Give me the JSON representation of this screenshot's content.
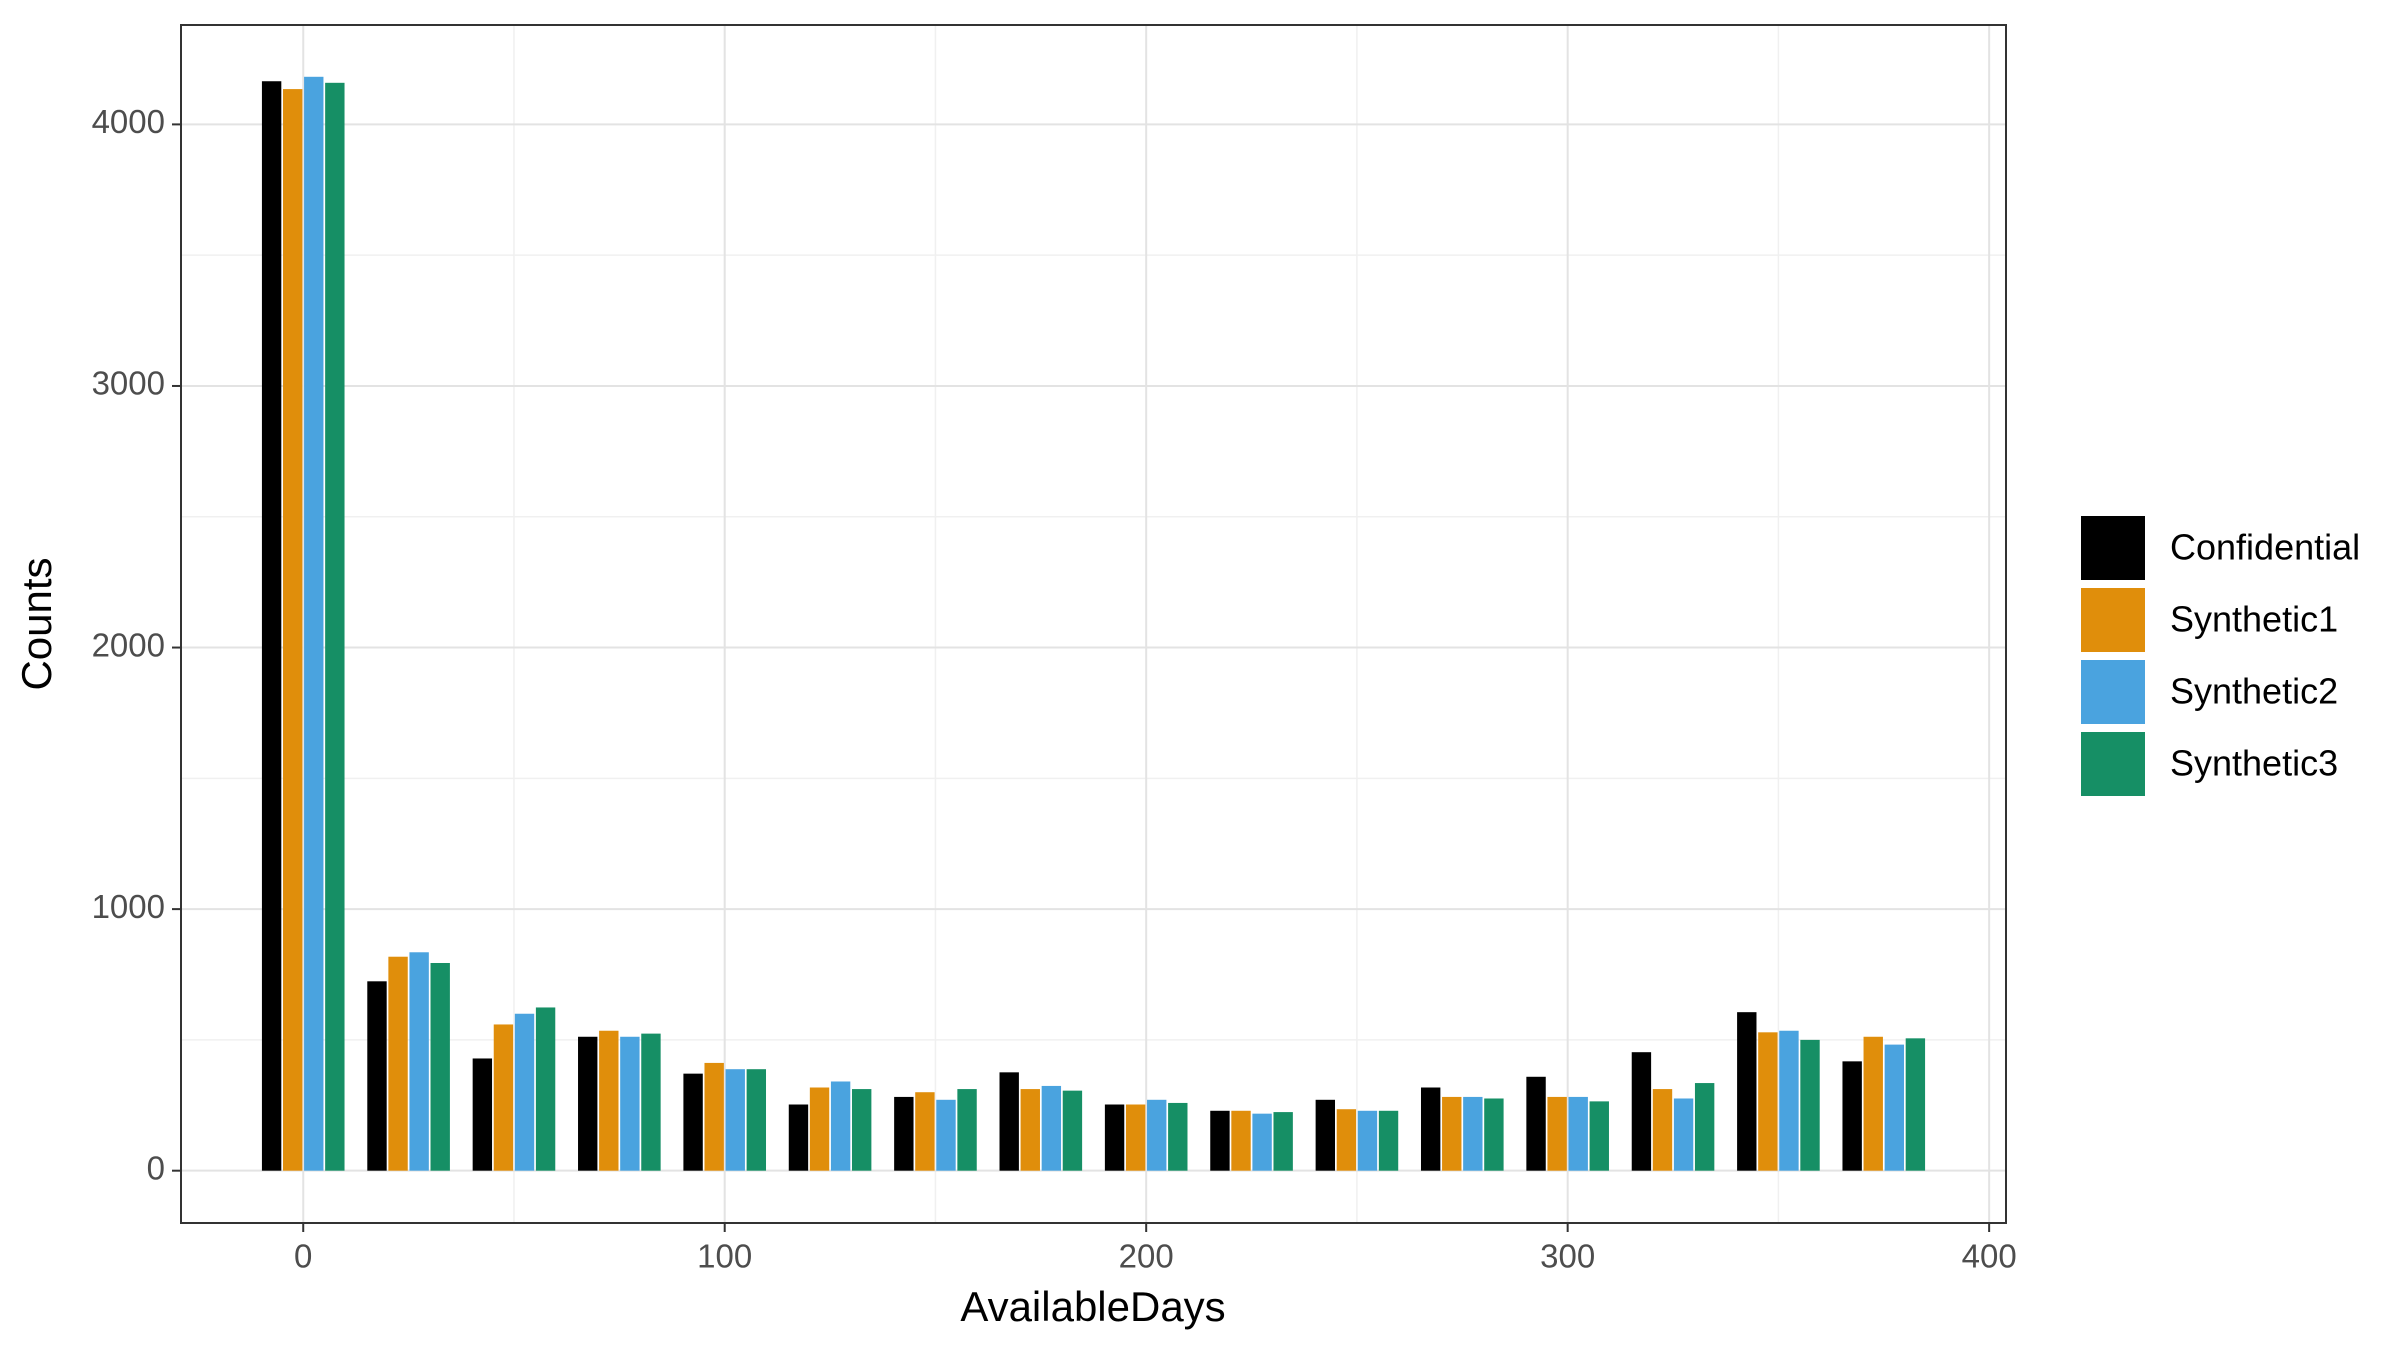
{
  "chart_data": {
    "type": "bar",
    "x_label": "AvailableDays",
    "y_label": "Counts",
    "x": [
      0,
      25,
      50,
      75,
      100,
      125,
      150,
      175,
      200,
      225,
      250,
      275,
      300,
      325,
      350,
      375
    ],
    "series": [
      {
        "name": "Confidential",
        "color": "#000000",
        "values": [
          4165,
          724,
          429,
          512,
          371,
          253,
          282,
          376,
          253,
          229,
          271,
          318,
          359,
          453,
          606,
          418
        ]
      },
      {
        "name": "Synthetic1",
        "color": "#e08e0b",
        "values": [
          4135,
          818,
          559,
          535,
          412,
          318,
          300,
          312,
          253,
          229,
          235,
          282,
          282,
          312,
          529,
          512
        ]
      },
      {
        "name": "Synthetic2",
        "color": "#4aa3df",
        "values": [
          4182,
          835,
          600,
          512,
          388,
          341,
          271,
          324,
          271,
          218,
          229,
          282,
          282,
          276,
          535,
          482
        ]
      },
      {
        "name": "Synthetic3",
        "color": "#168f65",
        "values": [
          4159,
          794,
          624,
          524,
          388,
          312,
          312,
          306,
          259,
          224,
          229,
          276,
          265,
          335,
          500,
          506
        ]
      }
    ],
    "xlim": [
      -29,
      404
    ],
    "xticks": [
      0,
      100,
      200,
      300,
      400
    ],
    "ylim": [
      -200,
      4380
    ],
    "yticks": [
      0,
      1000,
      2000,
      3000,
      4000
    ],
    "grid": true,
    "legend": "right"
  }
}
